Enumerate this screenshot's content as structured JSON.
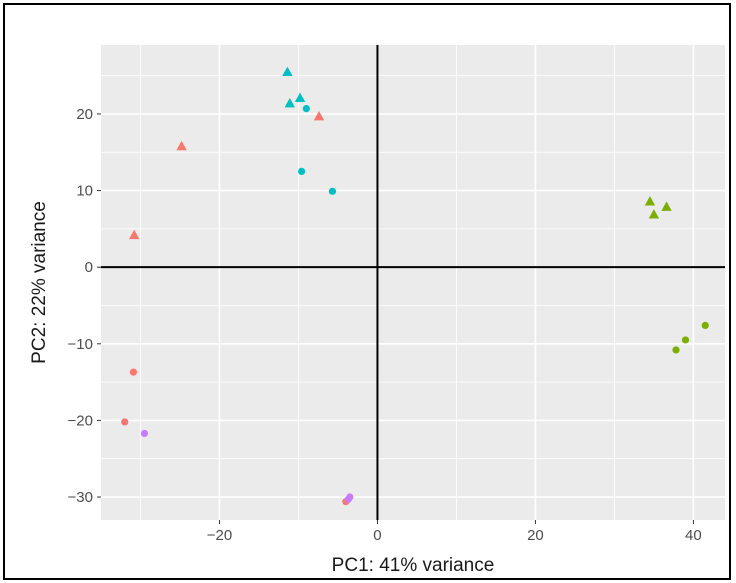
{
  "chart_data": {
    "type": "scatter",
    "xlabel": "PC1: 41% variance",
    "ylabel": "PC2: 22% variance",
    "xlim": [
      -35,
      44
    ],
    "ylim": [
      -33,
      29
    ],
    "x_ticks": [
      -20,
      0,
      20,
      40
    ],
    "x_tick_labels": [
      "−20",
      "0",
      "20",
      "40"
    ],
    "y_ticks": [
      -30,
      -20,
      -10,
      0,
      10,
      20
    ],
    "y_tick_labels": [
      "−30",
      "−20",
      "−10",
      "0",
      "10",
      "20"
    ],
    "grid": true,
    "background": "#ebebeb",
    "grid_color": "#ffffff",
    "zero_lines": true,
    "legend": "none",
    "colors": {
      "red": "#f8766d",
      "green": "#7cae00",
      "cyan": "#00bfc4",
      "purple": "#c77cff"
    },
    "points": [
      {
        "x": -24.8,
        "y": 15.8,
        "shape": "triangle",
        "color": "red"
      },
      {
        "x": -30.8,
        "y": 4.2,
        "shape": "triangle",
        "color": "red"
      },
      {
        "x": -7.4,
        "y": 19.7,
        "shape": "triangle",
        "color": "red"
      },
      {
        "x": -30.9,
        "y": -13.7,
        "shape": "circle",
        "color": "red"
      },
      {
        "x": -32.0,
        "y": -20.2,
        "shape": "circle",
        "color": "red"
      },
      {
        "x": -4.0,
        "y": -30.6,
        "shape": "circle",
        "color": "red"
      },
      {
        "x": -11.4,
        "y": 25.5,
        "shape": "triangle",
        "color": "cyan"
      },
      {
        "x": -11.1,
        "y": 21.4,
        "shape": "triangle",
        "color": "cyan"
      },
      {
        "x": -9.8,
        "y": 22.1,
        "shape": "triangle",
        "color": "cyan"
      },
      {
        "x": -9.0,
        "y": 20.7,
        "shape": "circle",
        "color": "cyan"
      },
      {
        "x": -9.6,
        "y": 12.5,
        "shape": "circle",
        "color": "cyan"
      },
      {
        "x": -5.7,
        "y": 9.9,
        "shape": "circle",
        "color": "cyan"
      },
      {
        "x": 34.5,
        "y": 8.6,
        "shape": "triangle",
        "color": "green"
      },
      {
        "x": 36.6,
        "y": 7.9,
        "shape": "triangle",
        "color": "green"
      },
      {
        "x": 35.0,
        "y": 6.9,
        "shape": "triangle",
        "color": "green"
      },
      {
        "x": 41.5,
        "y": -7.6,
        "shape": "circle",
        "color": "green"
      },
      {
        "x": 39.0,
        "y": -9.5,
        "shape": "circle",
        "color": "green"
      },
      {
        "x": 37.8,
        "y": -10.8,
        "shape": "circle",
        "color": "green"
      },
      {
        "x": -29.5,
        "y": -21.7,
        "shape": "circle",
        "color": "purple"
      },
      {
        "x": -3.5,
        "y": -30.0,
        "shape": "circle",
        "color": "purple"
      },
      {
        "x": -3.7,
        "y": -30.3,
        "shape": "circle",
        "color": "purple"
      }
    ]
  }
}
